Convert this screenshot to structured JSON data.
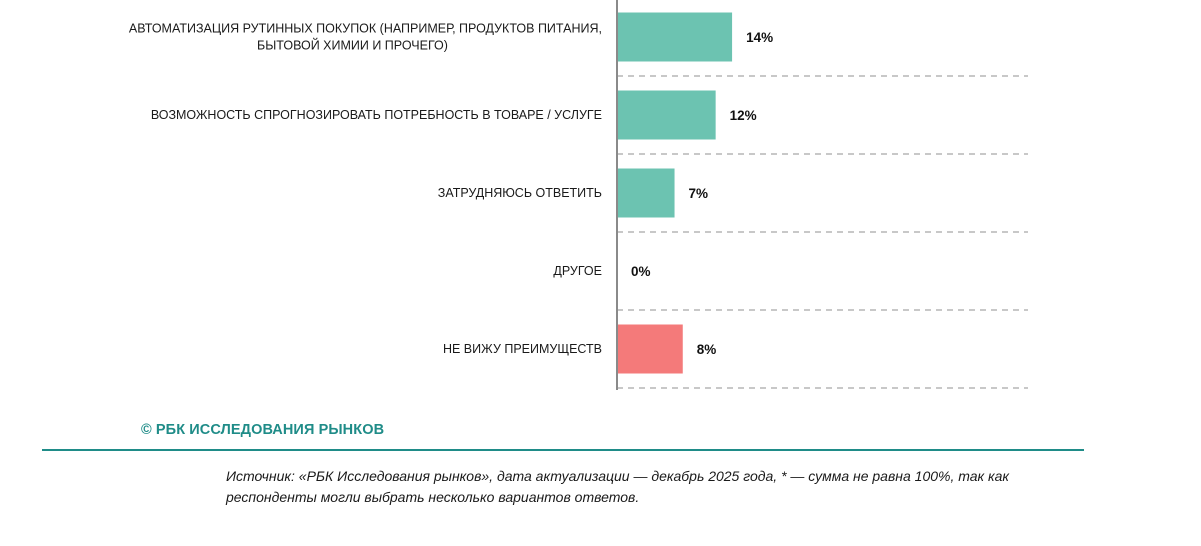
{
  "chart_data": {
    "type": "bar",
    "orientation": "horizontal",
    "categories": [
      [
        "АВТОМАТИЗАЦИЯ РУТИННЫХ ПОКУПОК (НАПРИМЕР, ПРОДУКТОВ ПИТАНИЯ,",
        "БЫТОВОЙ ХИМИИ И ПРОЧЕГО)"
      ],
      [
        "ВОЗМОЖНОСТЬ СПРОГНОЗИРОВАТЬ ПОТРЕБНОСТЬ В ТОВАРЕ / УСЛУГЕ"
      ],
      [
        "ЗАТРУДНЯЮСЬ ОТВЕТИТЬ"
      ],
      [
        "ДРУГОЕ"
      ],
      [
        "НЕ ВИЖУ ПРЕИМУЩЕСТВ"
      ]
    ],
    "values": [
      14,
      12,
      7,
      0,
      8
    ],
    "value_labels": [
      "14%",
      "12%",
      "7%",
      "0%",
      "8%"
    ],
    "bar_colors": [
      "#6cc3b1",
      "#6cc3b1",
      "#6cc3b1",
      "#6cc3b1",
      "#f47a7a"
    ],
    "xlim": [
      0,
      50
    ],
    "grid": "dashed horizontal separators"
  },
  "footer": {
    "brand": "© РБК ИССЛЕДОВАНИЯ РЫНКОВ",
    "brand_color": "#1f8c88",
    "source": "Источник: «РБК Исследования рынков», дата актуализации — декабрь 2025 года, * — сумма не равна 100%, так как респонденты могли выбрать несколько вариантов ответов."
  }
}
